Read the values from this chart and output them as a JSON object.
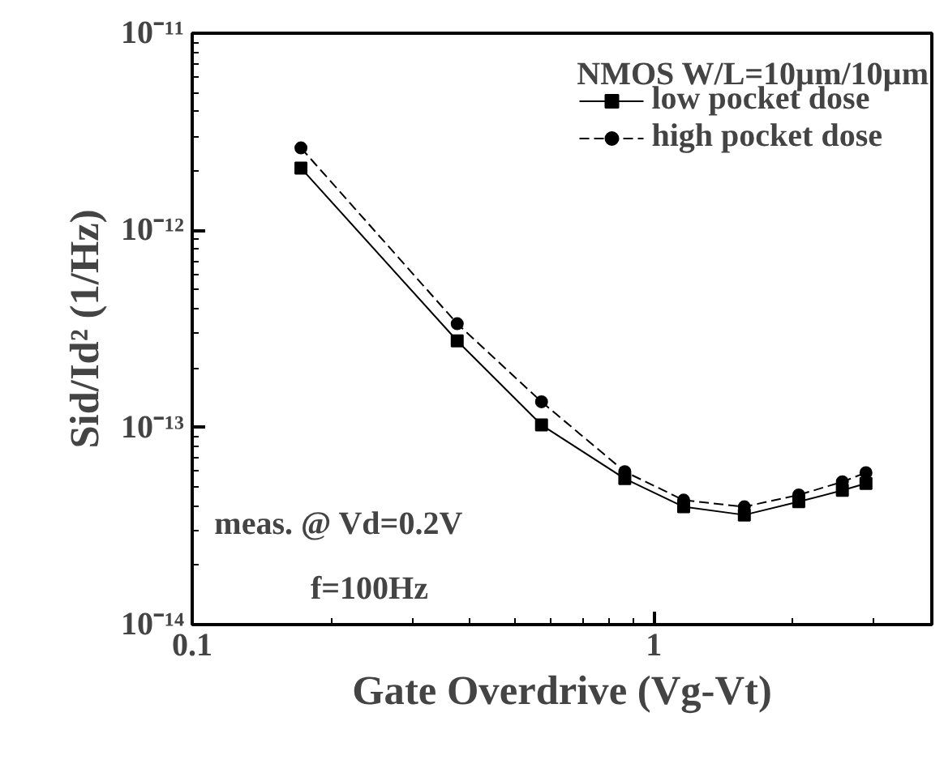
{
  "chart_data": {
    "type": "line",
    "xlabel": "Gate Overdrive (Vg-Vt)",
    "ylabel": "Sid/Id² (1/Hz)",
    "log": "xy",
    "grid": false,
    "legend": "top right",
    "xlim": [
      0.1,
      4
    ],
    "xticks": [
      0.1,
      1
    ],
    "ylim": [
      1e-14,
      1e-11
    ],
    "yticks": [
      {
        "value": 1e-14,
        "label": "10⁻¹⁴"
      },
      {
        "value": 1e-13,
        "label": "10⁻¹³"
      },
      {
        "value": 1e-12,
        "label": "10⁻¹²"
      },
      {
        "value": 1e-11,
        "label": "10⁻¹¹"
      }
    ],
    "annotations": [
      "NMOS   W/L=10µm/10µm",
      "meas. @  Vd=0.2V",
      "f=100Hz"
    ],
    "series": [
      {
        "name": "low pocket dose",
        "color": "#000000",
        "marker": "square",
        "line_style": "solid",
        "x": [
          0.172,
          0.375,
          0.571,
          0.865,
          1.16,
          1.57,
          2.06,
          2.56,
          2.88
        ],
        "values": [
          2.07e-12,
          2.75e-13,
          1.03e-13,
          5.5e-14,
          3.96e-14,
          3.6e-14,
          4.2e-14,
          4.8e-14,
          5.2e-14
        ]
      },
      {
        "name": "high pocket dose",
        "color": "#000000",
        "marker": "circle",
        "line_style": "dashed",
        "x": [
          0.172,
          0.375,
          0.571,
          0.865,
          1.16,
          1.57,
          2.06,
          2.56,
          2.88
        ],
        "values": [
          2.62e-12,
          3.36e-13,
          1.35e-13,
          5.97e-14,
          4.28e-14,
          3.96e-14,
          4.55e-14,
          5.3e-14,
          5.9e-14
        ]
      }
    ]
  }
}
